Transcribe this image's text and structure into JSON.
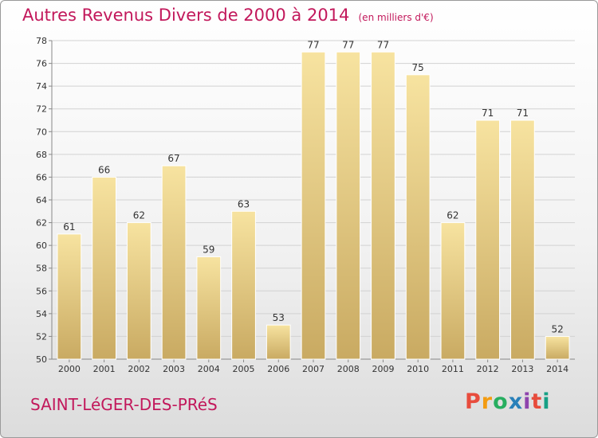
{
  "header": {
    "title": "Autres Revenus Divers de 2000 à 2014",
    "subtitle": "(en milliers d'€)"
  },
  "footer": {
    "commune": "SAINT-LéGER-DES-PRéS",
    "logo": "Proxiti"
  },
  "colors": {
    "title": "#c2185b",
    "bar_top": "#f7e3a0",
    "bar_bottom": "#c9aa62"
  },
  "chart_data": {
    "type": "bar",
    "title": "Autres Revenus Divers de 2000 à 2014",
    "subtitle": "(en milliers d'€)",
    "categories": [
      "2000",
      "2001",
      "2002",
      "2003",
      "2004",
      "2005",
      "2006",
      "2007",
      "2008",
      "2009",
      "2010",
      "2011",
      "2012",
      "2013",
      "2014"
    ],
    "values": [
      61,
      66,
      62,
      67,
      59,
      63,
      53,
      77,
      77,
      77,
      75,
      62,
      71,
      71,
      52
    ],
    "ylim": [
      50,
      78
    ],
    "yticks": [
      50,
      52,
      54,
      56,
      58,
      60,
      62,
      64,
      66,
      68,
      70,
      72,
      74,
      76,
      78
    ],
    "grid": true,
    "data_labels": true
  }
}
